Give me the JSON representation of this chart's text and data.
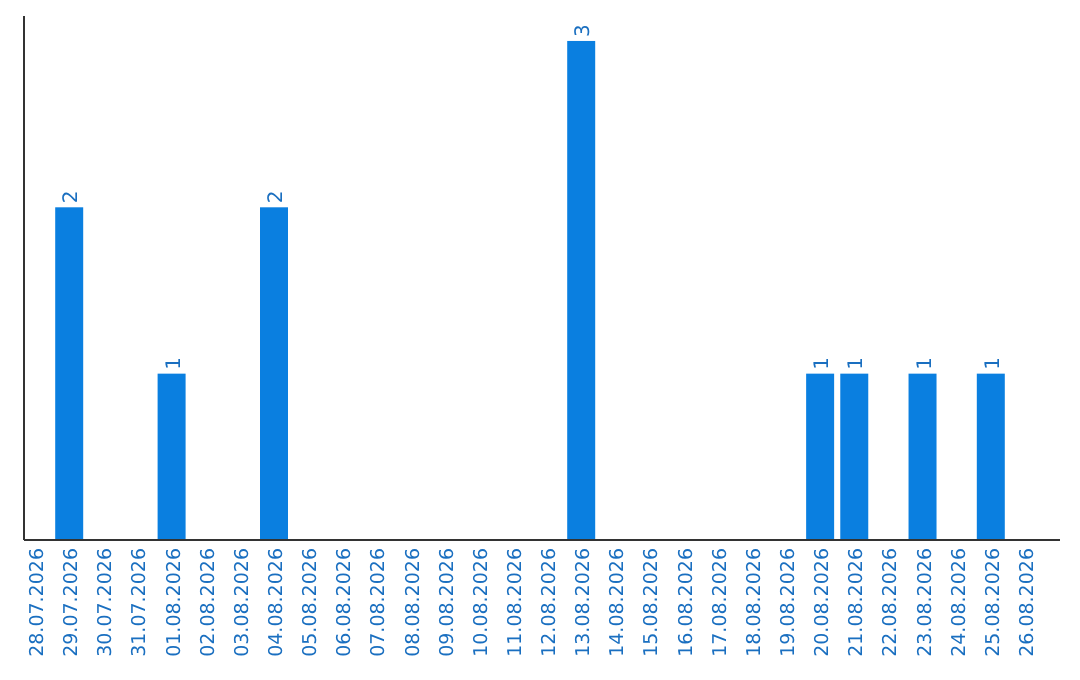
{
  "chart_data": {
    "type": "bar",
    "categories": [
      "28.07.2026",
      "29.07.2026",
      "30.07.2026",
      "31.07.2026",
      "01.08.2026",
      "02.08.2026",
      "03.08.2026",
      "04.08.2026",
      "05.08.2026",
      "06.08.2026",
      "07.08.2026",
      "08.08.2026",
      "09.08.2026",
      "10.08.2026",
      "11.08.2026",
      "12.08.2026",
      "13.08.2026",
      "14.08.2026",
      "15.08.2026",
      "16.08.2026",
      "17.08.2026",
      "18.08.2026",
      "19.08.2026",
      "20.08.2026",
      "21.08.2026",
      "22.08.2026",
      "23.08.2026",
      "24.08.2026",
      "25.08.2026",
      "26.08.2026"
    ],
    "values": [
      0,
      2,
      0,
      0,
      1,
      0,
      0,
      2,
      0,
      0,
      0,
      0,
      0,
      0,
      0,
      0,
      3,
      0,
      0,
      0,
      0,
      0,
      0,
      1,
      1,
      0,
      1,
      0,
      1,
      0
    ],
    "value_labels": [
      null,
      "2",
      null,
      null,
      "1",
      null,
      null,
      "2",
      null,
      null,
      null,
      null,
      null,
      null,
      null,
      null,
      "3",
      null,
      null,
      null,
      null,
      null,
      null,
      "1",
      "1",
      null,
      "1",
      null,
      "1",
      null
    ],
    "color": "#0a7fe0"
  }
}
